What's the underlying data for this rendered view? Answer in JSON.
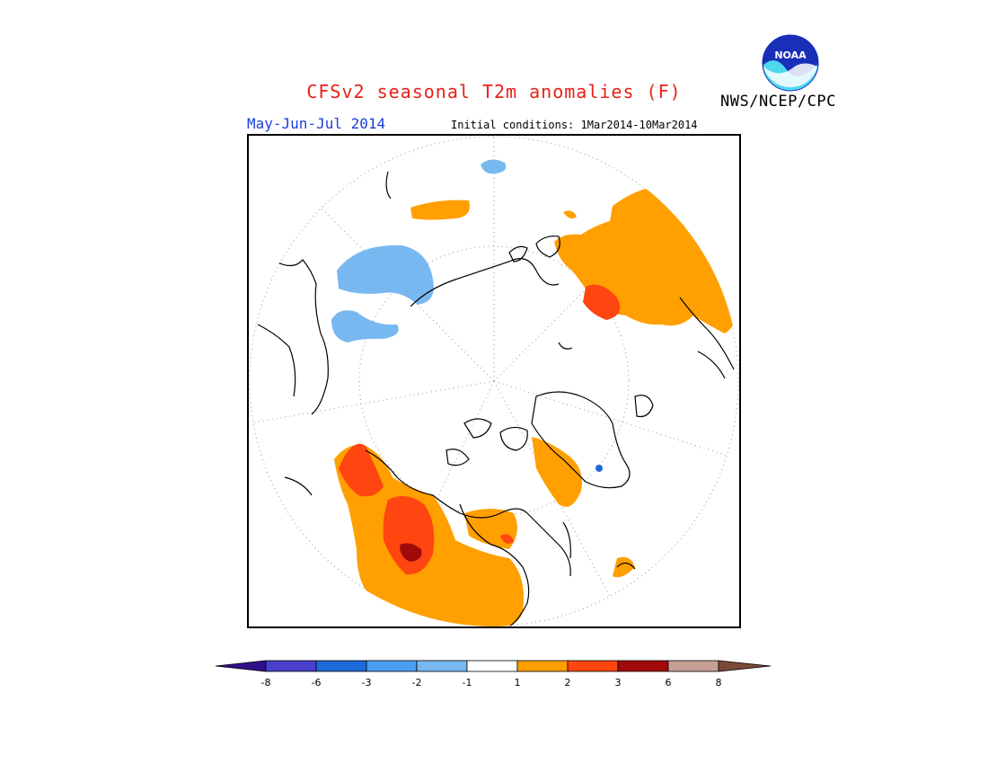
{
  "header": {
    "title": "CFSv2 seasonal T2m anomalies (F)",
    "agency": "NWS/NCEP/CPC",
    "logo_text": "NOAA",
    "period": "May-Jun-Jul 2014",
    "initial_conditions": "Initial conditions: 1Mar2014-10Mar2014"
  },
  "map": {
    "projection": "north-polar-stereographic",
    "variable": "T2m anomaly",
    "units": "F",
    "regions": [
      {
        "name": "western-north-america",
        "anomaly_class": "1 to 3, core above 3",
        "color": "#ff9f00"
      },
      {
        "name": "hudson-bay-region",
        "anomaly_class": "1 to 2",
        "color": "#ff9f00"
      },
      {
        "name": "central-siberia",
        "anomaly_class": "1 to 3",
        "color": "#ff9f00"
      },
      {
        "name": "eastern-europe-russia",
        "anomaly_class": "1 to 3",
        "color": "#ff9f00"
      },
      {
        "name": "scandinavia-svalbard",
        "anomaly_class": "1 to 2",
        "color": "#ff9f00"
      },
      {
        "name": "north-pacific",
        "anomaly_class": "-2 to -1",
        "color": "#78b8f0"
      },
      {
        "name": "alaska-bering",
        "anomaly_class": "-2 to -1",
        "color": "#78b8f0"
      }
    ]
  },
  "colorbar": {
    "labels": [
      "-8",
      "-6",
      "-3",
      "-2",
      "-1",
      "1",
      "2",
      "3",
      "6",
      "8"
    ],
    "bins": [
      {
        "color": "#30108a"
      },
      {
        "color": "#4a3fcc"
      },
      {
        "color": "#1e6ad8"
      },
      {
        "color": "#4a9ff0"
      },
      {
        "color": "#78b8f0"
      },
      {
        "color": "#ffffff"
      },
      {
        "color": "#ff9f00"
      },
      {
        "color": "#ff4510"
      },
      {
        "color": "#a00a0a"
      },
      {
        "color": "#c6a094"
      },
      {
        "color": "#7a4a38"
      }
    ]
  }
}
